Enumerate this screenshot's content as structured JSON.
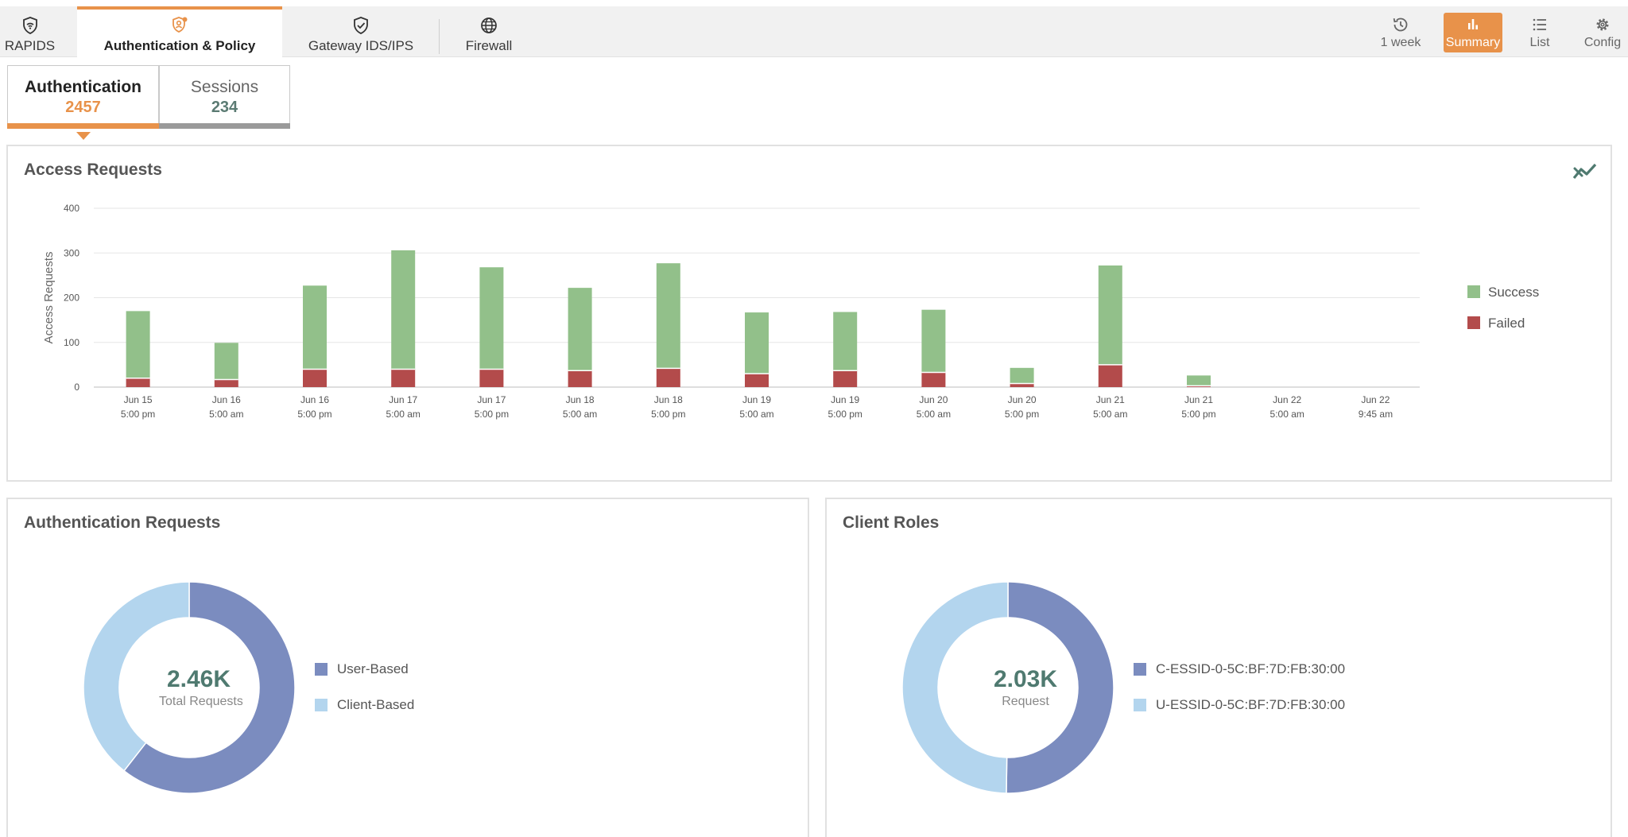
{
  "top_nav": {
    "tabs": [
      {
        "label": "RAPIDS",
        "icon": "shield-wifi-icon"
      },
      {
        "label": "Authentication & Policy",
        "icon": "user-shield-icon"
      },
      {
        "label": "Gateway IDS/IPS",
        "icon": "shield-check-icon"
      },
      {
        "label": "Firewall",
        "icon": "globe-icon"
      }
    ],
    "active_tab": "Authentication & Policy",
    "right_buttons": [
      {
        "label": "1 week",
        "icon": "history-icon"
      },
      {
        "label": "Summary",
        "icon": "bar-chart-icon"
      },
      {
        "label": "List",
        "icon": "list-icon"
      },
      {
        "label": "Config",
        "icon": "gear-icon"
      }
    ],
    "active_right": "Summary"
  },
  "sub_tabs": [
    {
      "label": "Authentication",
      "count": "2457",
      "accent": "#e8924a"
    },
    {
      "label": "Sessions",
      "count": "234",
      "accent": "#5b7b73"
    }
  ],
  "access_panel": {
    "title": "Access Requests",
    "icon": "trend-toggle-icon"
  },
  "auth_panel": {
    "title": "Authentication Requests",
    "center_value": "2.46K",
    "center_label": "Total Requests"
  },
  "roles_panel": {
    "title": "Client Roles",
    "center_value": "2.03K",
    "center_label": "Request"
  },
  "colors": {
    "success": "#92c08a",
    "failed": "#b34b4b",
    "orange": "#e8924a",
    "teal": "#4f7a70",
    "donut_dark": "#7b8cbf",
    "donut_light": "#b3d5ee"
  },
  "chart_data": [
    {
      "type": "bar",
      "stacked": true,
      "title": "Access Requests",
      "ylabel": "Access Requests",
      "ylim": [
        0,
        400
      ],
      "yticks": [
        0,
        100,
        200,
        300,
        400
      ],
      "grid": true,
      "legend_position": "right",
      "categories": [
        [
          "Jun 15",
          "5:00 pm"
        ],
        [
          "Jun 16",
          "5:00 am"
        ],
        [
          "Jun 16",
          "5:00 pm"
        ],
        [
          "Jun 17",
          "5:00 am"
        ],
        [
          "Jun 17",
          "5:00 pm"
        ],
        [
          "Jun 18",
          "5:00 am"
        ],
        [
          "Jun 18",
          "5:00 pm"
        ],
        [
          "Jun 19",
          "5:00 am"
        ],
        [
          "Jun 19",
          "5:00 pm"
        ],
        [
          "Jun 20",
          "5:00 am"
        ],
        [
          "Jun 20",
          "5:00 pm"
        ],
        [
          "Jun 21",
          "5:00 am"
        ],
        [
          "Jun 21",
          "5:00 pm"
        ],
        [
          "Jun 22",
          "5:00 am"
        ],
        [
          "Jun 22",
          "9:45 am"
        ]
      ],
      "series": [
        {
          "name": "Failed",
          "color": "#b34b4b",
          "values": [
            20,
            17,
            40,
            40,
            40,
            37,
            42,
            30,
            37,
            33,
            8,
            50,
            3,
            0,
            0
          ]
        },
        {
          "name": "Success",
          "color": "#92c08a",
          "values": [
            150,
            82,
            187,
            266,
            228,
            185,
            235,
            137,
            131,
            140,
            35,
            222,
            23,
            0,
            0
          ]
        }
      ]
    },
    {
      "type": "pie",
      "title": "Authentication Requests",
      "labels": [
        "User-Based",
        "Client-Based"
      ],
      "values": [
        1490,
        970
      ],
      "colors": [
        "#7b8cbf",
        "#b3d5ee"
      ]
    },
    {
      "type": "pie",
      "title": "Client Roles",
      "labels": [
        "C-ESSID-0-5C:BF:7D:FB:30:00",
        "U-ESSID-0-5C:BF:7D:FB:30:00"
      ],
      "values": [
        1020,
        1010
      ],
      "colors": [
        "#7b8cbf",
        "#b3d5ee"
      ]
    }
  ]
}
